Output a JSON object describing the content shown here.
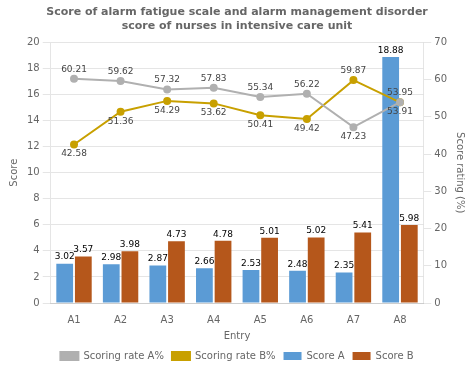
{
  "chart_data": {
    "type": "bar",
    "title": "Score of alarm fatigue scale and alarm management disorder\nscore of nurses in intensive care unit",
    "x_label": "Entry",
    "y_label": "Score",
    "y2_label": "Score rating (%)",
    "categories": [
      "A1",
      "A2",
      "A3",
      "A4",
      "A5",
      "A6",
      "A7",
      "A8"
    ],
    "series": [
      {
        "name": "Score A",
        "type": "bar",
        "color": "#5b9bd5",
        "values": [
          3.02,
          2.98,
          2.87,
          2.66,
          2.53,
          2.48,
          2.35,
          18.88
        ]
      },
      {
        "name": "Score B",
        "type": "bar",
        "color": "#b5571b",
        "values": [
          3.57,
          3.98,
          4.73,
          4.78,
          5.01,
          5.02,
          5.41,
          5.98
        ]
      },
      {
        "name": "Scoring rate A%",
        "type": "line",
        "axis": "y2",
        "color": "#b0b0b0",
        "marker": "circle",
        "values": [
          60.21,
          59.62,
          57.32,
          57.83,
          55.34,
          56.22,
          47.23,
          53.95
        ]
      },
      {
        "name": "Scoring rate B%",
        "type": "line",
        "axis": "y2",
        "color": "#c8a000",
        "marker": "circle",
        "values": [
          42.58,
          51.36,
          54.29,
          53.62,
          50.41,
          49.42,
          59.87,
          53.91
        ]
      }
    ],
    "ylim": [
      0,
      20
    ],
    "yticks": [
      0,
      2,
      4,
      6,
      8,
      10,
      12,
      14,
      16,
      18,
      20
    ],
    "y2lim": [
      0,
      70
    ],
    "y2ticks": [
      0,
      10,
      20,
      30,
      40,
      50,
      60,
      70
    ],
    "grid": true,
    "legend": "bottom",
    "data_labels": true
  }
}
